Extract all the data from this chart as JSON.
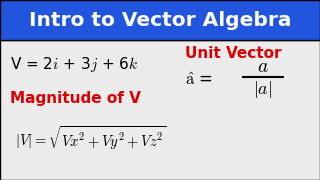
{
  "title": "Intro to Vector Algebra",
  "title_bg": "#2255DD",
  "title_color": "#FFFFFF",
  "content_bg": "#EBEBEB",
  "label_magnitude_color": "#DD0000",
  "label_unit_color": "#DD0000",
  "title_fontsize": 14.5,
  "eq1_fontsize": 11,
  "mag_label_fontsize": 11,
  "unit_label_fontsize": 11,
  "eq_mag_fontsize": 10.5,
  "unit_eq_fontsize": 12
}
